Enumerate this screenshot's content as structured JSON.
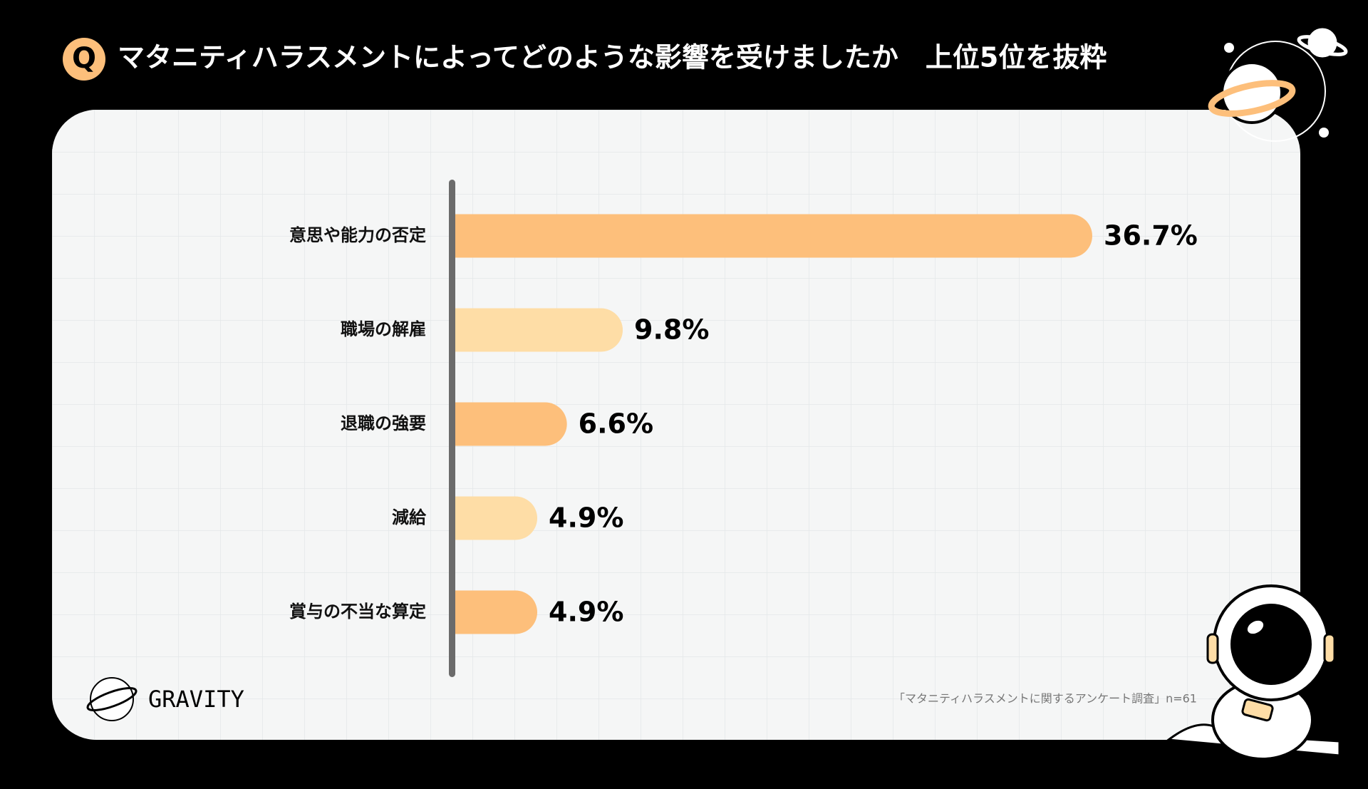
{
  "question_mark": "Q",
  "brand": "GRAVITY",
  "source": "「マタニティハラスメントに関するアンケート調査」n=61",
  "chart_data": {
    "type": "bar",
    "orientation": "horizontal",
    "title": "マタニティハラスメントによってどのような影響を受けましたか　上位5位を抜粋",
    "categories": [
      "意思や能力の否定",
      "職場の解雇",
      "退職の強要",
      "減給",
      "賞与の不当な算定"
    ],
    "values": [
      36.7,
      9.8,
      6.6,
      4.9,
      4.9
    ],
    "value_labels": [
      "36.7%",
      "9.8%",
      "6.6%",
      "4.9%",
      "4.9%"
    ],
    "colors": [
      "#fdbf7b",
      "#fedda6",
      "#fdbf7b",
      "#fedda6",
      "#fdbf7b"
    ]
  }
}
